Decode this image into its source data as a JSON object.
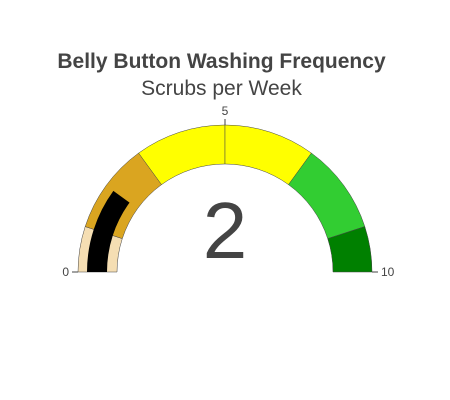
{
  "chart_data": {
    "type": "gauge",
    "title": "Belly Button Washing Frequency",
    "subtitle": "Scrubs per Week",
    "value": 2,
    "range": [
      0,
      10
    ],
    "tick_labels": [
      {
        "value": 0,
        "label": "0"
      },
      {
        "value": 5,
        "label": "5"
      },
      {
        "value": 10,
        "label": "10"
      }
    ],
    "steps": [
      {
        "range": [
          0,
          1
        ],
        "color": "#F5DEB3"
      },
      {
        "range": [
          1,
          3
        ],
        "color": "#DAA520"
      },
      {
        "range": [
          3,
          5
        ],
        "color": "#FFFF00"
      },
      {
        "range": [
          5,
          7
        ],
        "color": "#FFFF00"
      },
      {
        "range": [
          7,
          9
        ],
        "color": "#32CD32"
      },
      {
        "range": [
          9,
          10
        ],
        "color": "#008000"
      }
    ],
    "bar": {
      "value": 2,
      "color": "#000000"
    },
    "number_color": "#444444"
  }
}
